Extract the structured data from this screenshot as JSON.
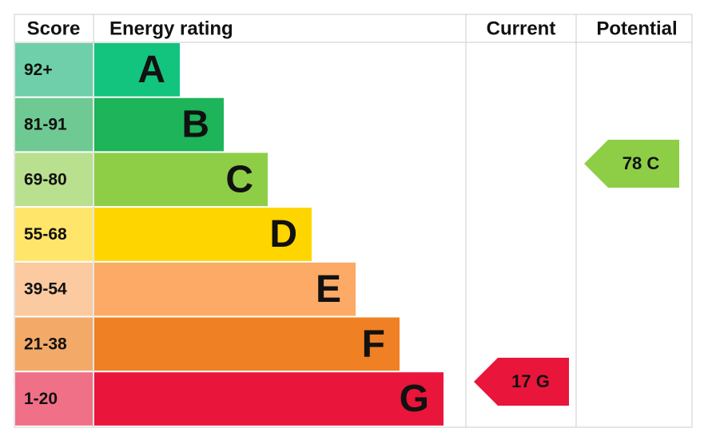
{
  "headers": [
    "Score",
    "Energy rating",
    "Current",
    "Potential"
  ],
  "bands": [
    {
      "score": "92+",
      "letter": "A",
      "color": "#13c47f",
      "score_color": "#6fcfaa"
    },
    {
      "score": "81-91",
      "letter": "B",
      "color": "#1db45a",
      "score_color": "#6fc993"
    },
    {
      "score": "69-80",
      "letter": "C",
      "color": "#8dce46",
      "score_color": "#b9e08f"
    },
    {
      "score": "55-68",
      "letter": "D",
      "color": "#ffd500",
      "score_color": "#ffe56a"
    },
    {
      "score": "39-54",
      "letter": "E",
      "color": "#fcaa65",
      "score_color": "#fbcaa0"
    },
    {
      "score": "21-38",
      "letter": "F",
      "color": "#ef8023",
      "score_color": "#f3aa68"
    },
    {
      "score": "1-20",
      "letter": "G",
      "color": "#e9153b",
      "score_color": "#f07088"
    }
  ],
  "current": {
    "label": "17 G",
    "color": "#e9153b"
  },
  "potential": {
    "label": "78 C",
    "color": "#8dce46"
  }
}
